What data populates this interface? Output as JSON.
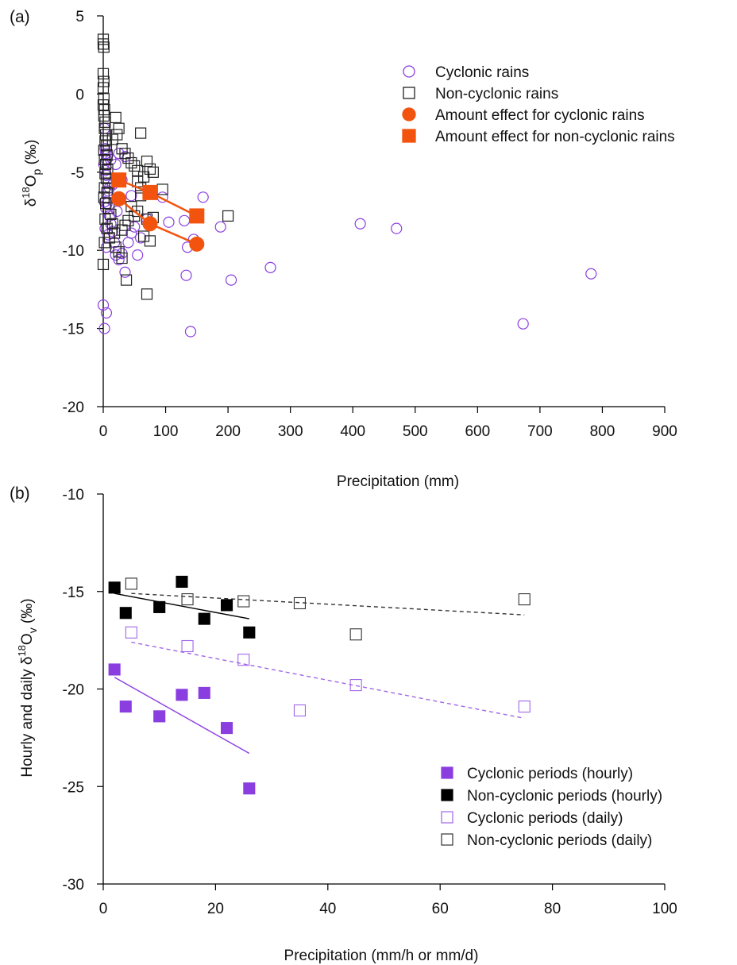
{
  "chart_data": [
    {
      "panel_label": "(a)",
      "type": "scatter",
      "xlabel": "Precipitation (mm)",
      "ylabel": {
        "prefix": "δ",
        "sup": "18",
        "main": "O",
        "sub": "p",
        "suffix": " (‰)"
      },
      "xlim": [
        0,
        900
      ],
      "ylim": [
        -20,
        5
      ],
      "xticks": [
        0,
        100,
        200,
        300,
        400,
        500,
        600,
        700,
        800,
        900
      ],
      "yticks": [
        -20,
        -15,
        -10,
        -5,
        0,
        5
      ],
      "grid": false,
      "legend": {
        "position": "top-right",
        "entries": [
          {
            "label": "Cyclonic rains",
            "marker": "circle-open",
            "color": "#8a3ee0"
          },
          {
            "label": "Non-cyclonic rains",
            "marker": "square-open",
            "color": "#222222"
          },
          {
            "label": "Amount effect for cyclonic rains",
            "marker": "circle-filled",
            "color": "#f2540f"
          },
          {
            "label": "Amount effect for non-cyclonic rains",
            "marker": "square-filled",
            "color": "#f2540f"
          }
        ]
      },
      "series": [
        {
          "name": "Cyclonic rains",
          "marker": "circle-open",
          "color": "#8a3ee0",
          "points": [
            [
              2,
              -2.2
            ],
            [
              3,
              -3.5
            ],
            [
              4,
              -3.8
            ],
            [
              5,
              -4.2
            ],
            [
              1,
              -4.5
            ],
            [
              3,
              -4.9
            ],
            [
              5,
              -5.2
            ],
            [
              7,
              -3.9
            ],
            [
              2,
              -6.9
            ],
            [
              4,
              -7.3
            ],
            [
              6,
              -7.0
            ],
            [
              8,
              -6.2
            ],
            [
              10,
              -7.8
            ],
            [
              12,
              -8.3
            ],
            [
              15,
              -8.8
            ],
            [
              18,
              -9.5
            ],
            [
              20,
              -10.3
            ],
            [
              25,
              -10.6
            ],
            [
              30,
              -10.2
            ],
            [
              35,
              -11.4
            ],
            [
              40,
              -9.5
            ],
            [
              45,
              -8.9
            ],
            [
              50,
              -8.5
            ],
            [
              55,
              -10.3
            ],
            [
              60,
              -9.2
            ],
            [
              70,
              -8.0
            ],
            [
              5,
              -9.8
            ],
            [
              3,
              -8.6
            ],
            [
              8,
              -9.0
            ],
            [
              95,
              -6.6
            ],
            [
              105,
              -8.2
            ],
            [
              130,
              -8.1
            ],
            [
              135,
              -9.8
            ],
            [
              145,
              -9.3
            ],
            [
              160,
              -6.6
            ],
            [
              188,
              -8.5
            ],
            [
              205,
              -11.9
            ],
            [
              268,
              -11.1
            ],
            [
              133,
              -11.6
            ],
            [
              140,
              -15.2
            ],
            [
              412,
              -8.3
            ],
            [
              470,
              -8.6
            ],
            [
              673,
              -14.7
            ],
            [
              782,
              -11.5
            ],
            [
              0,
              -13.5
            ],
            [
              5,
              -14.0
            ],
            [
              2,
              -15.0
            ],
            [
              20,
              -4.5
            ],
            [
              25,
              -3.8
            ],
            [
              35,
              -4.0
            ],
            [
              15,
              -5.8
            ],
            [
              10,
              -6.0
            ],
            [
              30,
              -5.5
            ],
            [
              22,
              -7.5
            ],
            [
              45,
              -6.5
            ],
            [
              12,
              -4.2
            ]
          ]
        },
        {
          "name": "Non-cyclonic rains",
          "marker": "square-open",
          "color": "#222222",
          "points": [
            [
              0,
              3.5
            ],
            [
              0,
              3.2
            ],
            [
              1,
              3.0
            ],
            [
              0,
              1.3
            ],
            [
              1,
              0.8
            ],
            [
              0,
              0.4
            ],
            [
              1,
              -0.3
            ],
            [
              0,
              -0.7
            ],
            [
              2,
              -1.0
            ],
            [
              1,
              -1.4
            ],
            [
              3,
              -1.8
            ],
            [
              2,
              -2.2
            ],
            [
              4,
              -2.6
            ],
            [
              3,
              -3.0
            ],
            [
              5,
              -3.3
            ],
            [
              1,
              -3.6
            ],
            [
              6,
              -3.9
            ],
            [
              2,
              -4.2
            ],
            [
              4,
              -4.5
            ],
            [
              7,
              -4.8
            ],
            [
              3,
              -5.1
            ],
            [
              5,
              -5.4
            ],
            [
              8,
              -5.7
            ],
            [
              2,
              -6.0
            ],
            [
              6,
              -6.3
            ],
            [
              1,
              -6.6
            ],
            [
              4,
              -7.0
            ],
            [
              9,
              -7.3
            ],
            [
              12,
              -7.7
            ],
            [
              3,
              -8.0
            ],
            [
              15,
              -8.3
            ],
            [
              6,
              -8.6
            ],
            [
              18,
              -8.9
            ],
            [
              10,
              -9.2
            ],
            [
              2,
              -9.5
            ],
            [
              20,
              -9.8
            ],
            [
              0,
              -10.9
            ],
            [
              25,
              -10.1
            ],
            [
              30,
              -10.5
            ],
            [
              37,
              -11.9
            ],
            [
              70,
              -12.8
            ],
            [
              20,
              -1.5
            ],
            [
              25,
              -2.2
            ],
            [
              22,
              -2.6
            ],
            [
              15,
              -2.9
            ],
            [
              30,
              -3.5
            ],
            [
              35,
              -3.8
            ],
            [
              40,
              -4.1
            ],
            [
              45,
              -4.4
            ],
            [
              50,
              -4.6
            ],
            [
              55,
              -4.9
            ],
            [
              60,
              -2.5
            ],
            [
              65,
              -5.3
            ],
            [
              55,
              -5.6
            ],
            [
              70,
              -4.3
            ],
            [
              75,
              -4.8
            ],
            [
              80,
              -5.0
            ],
            [
              60,
              -6.5
            ],
            [
              45,
              -7.2
            ],
            [
              50,
              -7.8
            ],
            [
              40,
              -8.1
            ],
            [
              35,
              -8.4
            ],
            [
              30,
              -8.7
            ],
            [
              65,
              -9.1
            ],
            [
              75,
              -9.4
            ],
            [
              55,
              -7.5
            ],
            [
              70,
              -8.0
            ],
            [
              95,
              -6.1
            ],
            [
              60,
              -6.0
            ],
            [
              80,
              -7.9
            ],
            [
              200,
              -7.8
            ]
          ]
        },
        {
          "name": "Amount effect for cyclonic rains",
          "marker": "circle-filled",
          "color": "#f2540f",
          "points": [
            [
              25,
              -6.7
            ],
            [
              75,
              -8.3
            ],
            [
              150,
              -9.6
            ]
          ]
        },
        {
          "name": "Amount effect for non-cyclonic rains",
          "marker": "square-filled",
          "color": "#f2540f",
          "points": [
            [
              25,
              -5.5
            ],
            [
              75,
              -6.3
            ],
            [
              150,
              -7.8
            ]
          ]
        }
      ]
    },
    {
      "panel_label": "(b)",
      "type": "scatter",
      "xlabel": "Precipitation (mm/h or mm/d)",
      "ylabel": {
        "prefix": "Hourly and daily δ",
        "sup": "18",
        "main": "O",
        "sub": "v",
        "suffix": " (‰)"
      },
      "xlim": [
        0,
        100
      ],
      "ylim": [
        -30,
        -10
      ],
      "xticks": [
        0,
        20,
        40,
        60,
        80,
        100
      ],
      "yticks": [
        -30,
        -25,
        -20,
        -15,
        -10
      ],
      "grid": false,
      "legend": {
        "position": "bottom-right",
        "entries": [
          {
            "label": "Cyclonic periods (hourly)",
            "marker": "square-filled",
            "color": "#8a3ee0"
          },
          {
            "label": "Non-cyclonic periods (hourly)",
            "marker": "square-filled",
            "color": "#000000"
          },
          {
            "label": "Cyclonic periods (daily)",
            "marker": "square-open",
            "color": "#a066e8"
          },
          {
            "label": "Non-cyclonic periods (daily)",
            "marker": "square-open",
            "color": "#333333"
          }
        ]
      },
      "series": [
        {
          "name": "Cyclonic periods (hourly)",
          "marker": "square-filled",
          "color": "#8a3ee0",
          "points": [
            [
              2,
              -19.0
            ],
            [
              4,
              -20.9
            ],
            [
              10,
              -21.4
            ],
            [
              14,
              -20.3
            ],
            [
              18,
              -20.2
            ],
            [
              22,
              -22.0
            ],
            [
              26,
              -25.1
            ]
          ],
          "fit": {
            "style": "solid",
            "from": [
              2,
              -19.4
            ],
            "to": [
              26,
              -23.3
            ]
          }
        },
        {
          "name": "Non-cyclonic periods (hourly)",
          "marker": "square-filled",
          "color": "#000000",
          "points": [
            [
              2,
              -14.8
            ],
            [
              4,
              -16.1
            ],
            [
              10,
              -15.8
            ],
            [
              14,
              -14.5
            ],
            [
              18,
              -16.4
            ],
            [
              22,
              -15.7
            ],
            [
              26,
              -17.1
            ]
          ],
          "fit": {
            "style": "solid",
            "from": [
              2,
              -15.1
            ],
            "to": [
              26,
              -16.4
            ]
          }
        },
        {
          "name": "Cyclonic periods (daily)",
          "marker": "square-open",
          "color": "#a066e8",
          "points": [
            [
              5,
              -17.1
            ],
            [
              15,
              -17.8
            ],
            [
              25,
              -18.5
            ],
            [
              35,
              -21.1
            ],
            [
              45,
              -19.8
            ],
            [
              75,
              -20.9
            ]
          ],
          "fit": {
            "style": "dashed",
            "from": [
              5,
              -17.6
            ],
            "to": [
              75,
              -21.5
            ]
          }
        },
        {
          "name": "Non-cyclonic periods (daily)",
          "marker": "square-open",
          "color": "#333333",
          "points": [
            [
              5,
              -14.6
            ],
            [
              15,
              -15.4
            ],
            [
              25,
              -15.5
            ],
            [
              35,
              -15.6
            ],
            [
              45,
              -17.2
            ],
            [
              75,
              -15.4
            ]
          ],
          "fit": {
            "style": "dashed",
            "from": [
              5,
              -15.1
            ],
            "to": [
              75,
              -16.2
            ]
          }
        }
      ]
    }
  ]
}
